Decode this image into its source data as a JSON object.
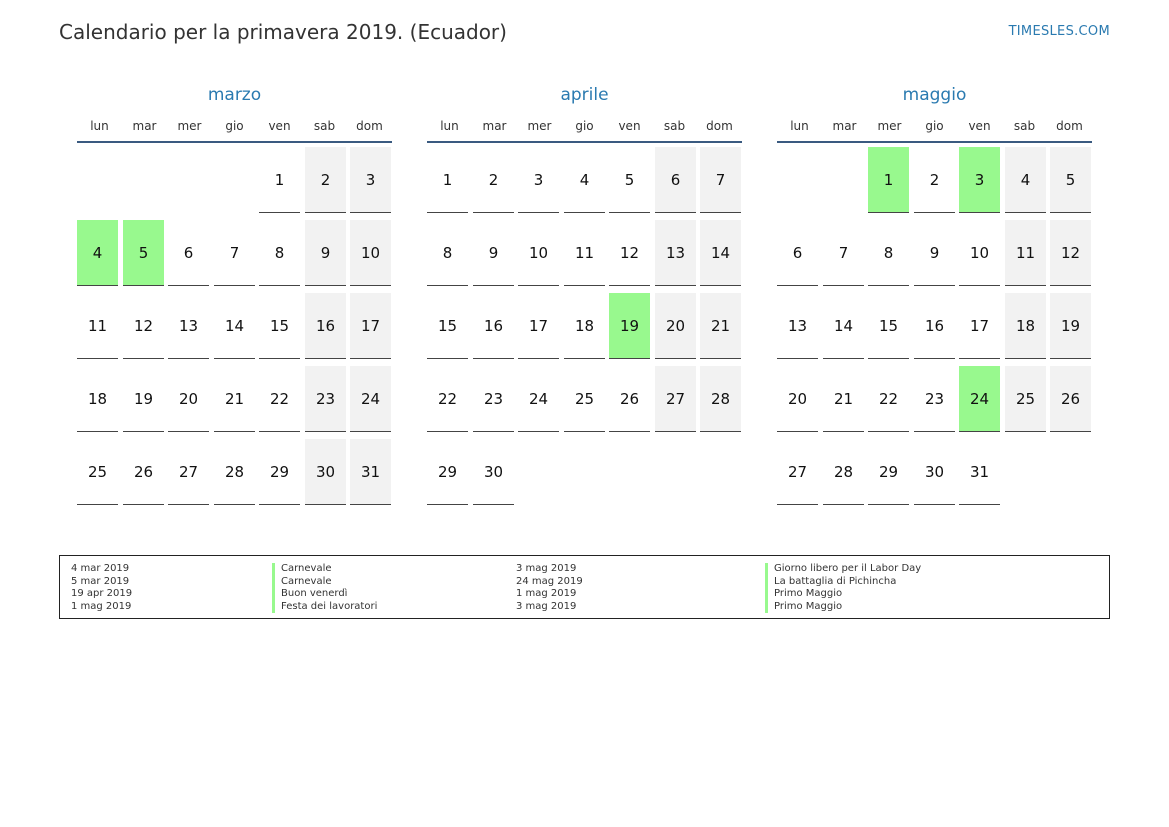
{
  "header": {
    "title": "Calendario per la primavera 2019. (Ecuador)",
    "site": "TIMESLES.COM"
  },
  "colors": {
    "accent": "#2a7ab0",
    "holiday": "#98f98e",
    "weekend": "#f2f2f2"
  },
  "weekdays": [
    "lun",
    "mar",
    "mer",
    "gio",
    "ven",
    "sab",
    "dom"
  ],
  "months": [
    {
      "name": "marzo",
      "first_weekday": 4,
      "days": 31,
      "holidays": [
        4,
        5
      ]
    },
    {
      "name": "aprile",
      "first_weekday": 0,
      "days": 30,
      "holidays": [
        19
      ]
    },
    {
      "name": "maggio",
      "first_weekday": 2,
      "days": 31,
      "holidays": [
        1,
        3,
        24
      ]
    }
  ],
  "legend": {
    "left": [
      {
        "date": "4 mar 2019",
        "name": "Carnevale"
      },
      {
        "date": "5 mar 2019",
        "name": "Carnevale"
      },
      {
        "date": "19 apr 2019",
        "name": "Buon venerdì"
      },
      {
        "date": "1 mag 2019",
        "name": "Festa dei lavoratori"
      }
    ],
    "right": [
      {
        "date": "3 mag 2019",
        "name": "Giorno libero per il Labor Day"
      },
      {
        "date": "24 mag 2019",
        "name": "La battaglia di Pichincha"
      },
      {
        "date": "1 mag 2019",
        "name": "Primo Maggio"
      },
      {
        "date": "3 mag 2019",
        "name": "Primo Maggio"
      }
    ]
  }
}
